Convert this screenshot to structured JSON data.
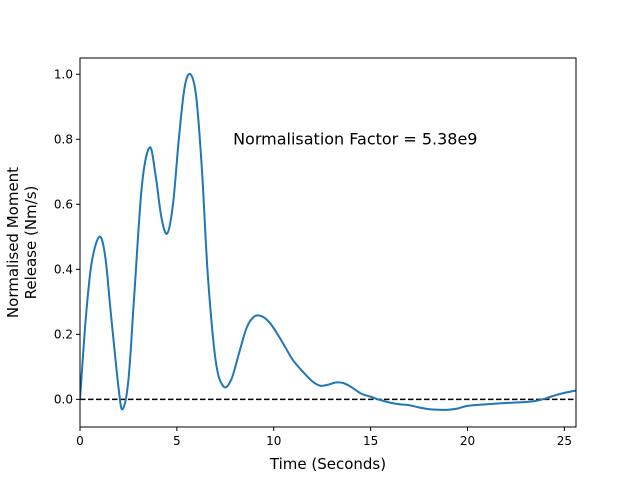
{
  "chart_data": {
    "type": "line",
    "title": "",
    "xlabel": "Time (Seconds)",
    "ylabel_lines": [
      "Normalised Moment",
      "Release (Nm/s)"
    ],
    "xlim": [
      0,
      25.6
    ],
    "ylim": [
      -0.085,
      1.05
    ],
    "xticks": [
      0,
      5,
      10,
      15,
      20,
      25
    ],
    "xtick_labels": [
      "0",
      "5",
      "10",
      "15",
      "20",
      "25"
    ],
    "yticks": [
      0.0,
      0.2,
      0.4,
      0.6,
      0.8,
      1.0
    ],
    "ytick_labels": [
      "0.0",
      "0.2",
      "0.4",
      "0.6",
      "0.8",
      "1.0"
    ],
    "grid": false,
    "annotation": {
      "text": "Normalisation Factor = 5.38e9",
      "x": 7.9,
      "y": 0.8
    },
    "reference_line": {
      "y": 0.0,
      "style": "dashed",
      "color": "#000000"
    },
    "series": [
      {
        "color": "#1f77b4",
        "x": [
          0,
          0.3,
          0.6,
          1.0,
          1.3,
          1.6,
          2.0,
          2.2,
          2.5,
          2.8,
          3.2,
          3.6,
          3.9,
          4.2,
          4.5,
          4.8,
          5.1,
          5.4,
          5.7,
          6.0,
          6.3,
          6.6,
          7.0,
          7.4,
          7.8,
          8.2,
          8.6,
          9.0,
          9.4,
          9.8,
          10.2,
          10.6,
          11.0,
          11.5,
          12.0,
          12.4,
          12.8,
          13.2,
          13.6,
          14.0,
          14.5,
          15.0,
          15.5,
          16.0,
          16.5,
          17.0,
          17.5,
          18.0,
          18.5,
          19.0,
          19.5,
          20.0,
          21.0,
          22.0,
          23.0,
          23.5,
          24.0,
          24.5,
          25.0,
          25.6
        ],
        "y": [
          0.0,
          0.25,
          0.42,
          0.5,
          0.44,
          0.26,
          0.03,
          -0.03,
          0.06,
          0.32,
          0.66,
          0.775,
          0.69,
          0.56,
          0.51,
          0.6,
          0.8,
          0.96,
          1.0,
          0.93,
          0.7,
          0.38,
          0.12,
          0.04,
          0.06,
          0.14,
          0.22,
          0.255,
          0.255,
          0.235,
          0.2,
          0.16,
          0.12,
          0.085,
          0.055,
          0.042,
          0.045,
          0.052,
          0.05,
          0.038,
          0.018,
          0.008,
          -0.002,
          -0.01,
          -0.015,
          -0.018,
          -0.025,
          -0.03,
          -0.032,
          -0.032,
          -0.028,
          -0.02,
          -0.015,
          -0.011,
          -0.008,
          -0.005,
          0.002,
          0.012,
          0.02,
          0.027
        ]
      }
    ]
  }
}
